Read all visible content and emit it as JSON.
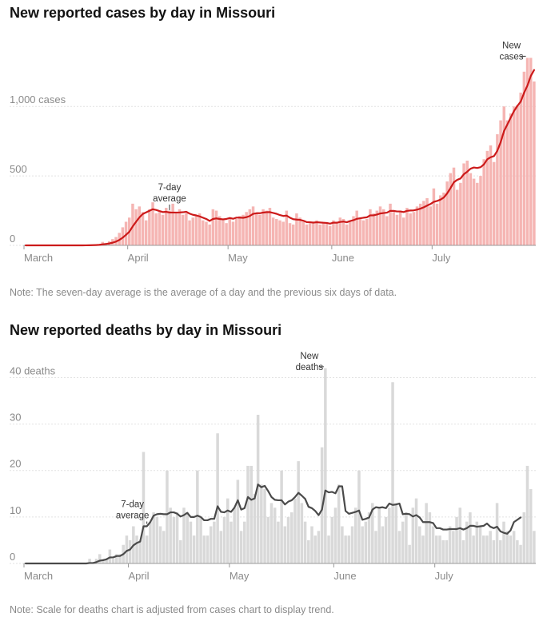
{
  "cases_chart": {
    "title": "New reported cases by day in Missouri",
    "note": "Note: The seven-day average is the average of a day and the previous six days of data.",
    "y_ticks": [
      {
        "value": 0,
        "label": "0"
      },
      {
        "value": 500,
        "label": "500"
      },
      {
        "value": 1000,
        "label": "1,000 cases"
      }
    ],
    "annotations": {
      "new_line1": "New",
      "new_line2": "cases",
      "avg_line1": "7-day",
      "avg_line2": "average"
    }
  },
  "deaths_chart": {
    "title": "New reported deaths by day in Missouri",
    "note": "Note: Scale for deaths chart is adjusted from cases chart to display trend.",
    "y_ticks": [
      {
        "value": 0,
        "label": "0"
      },
      {
        "value": 10,
        "label": "10"
      },
      {
        "value": 20,
        "label": "20"
      },
      {
        "value": 30,
        "label": "30"
      },
      {
        "value": 40,
        "label": "40 deaths"
      }
    ],
    "annotations": {
      "new_line1": "New",
      "new_line2": "deaths",
      "avg_line1": "7-day",
      "avg_line2": "average"
    }
  },
  "colors": {
    "case_bar": "#f5b5b3",
    "case_line": "#cc1a1a",
    "death_bar": "#d9d9d9",
    "death_line": "#4a4a4a",
    "grid": "#e2e2e2",
    "axis_text": "#8a8a8a"
  },
  "chart_data": [
    {
      "type": "bar",
      "title": "New reported cases by day in Missouri",
      "x_axis_labels": [
        "March",
        "April",
        "May",
        "June",
        "July"
      ],
      "x_start": "2020-03-01",
      "ylim": [
        0,
        1450
      ],
      "grid": true,
      "series": [
        {
          "name": "New cases",
          "values": [
            0,
            0,
            0,
            0,
            0,
            0,
            0,
            0,
            0,
            0,
            0,
            0,
            0,
            0,
            0,
            0,
            0,
            1,
            2,
            3,
            4,
            6,
            10,
            25,
            18,
            30,
            45,
            60,
            90,
            130,
            170,
            200,
            300,
            260,
            280,
            240,
            180,
            260,
            310,
            230,
            240,
            220,
            270,
            250,
            300,
            240,
            260,
            220,
            230,
            180,
            200,
            210,
            230,
            180,
            170,
            150,
            260,
            250,
            210,
            180,
            160,
            200,
            170,
            190,
            210,
            220,
            240,
            260,
            280,
            230,
            220,
            260,
            250,
            270,
            200,
            190,
            180,
            170,
            250,
            160,
            150,
            230,
            200,
            170,
            150,
            160,
            160,
            180,
            150,
            170,
            160,
            140,
            180,
            170,
            200,
            190,
            150,
            170,
            210,
            250,
            200,
            180,
            190,
            260,
            230,
            250,
            280,
            260,
            210,
            300,
            240,
            220,
            250,
            200,
            270,
            230,
            240,
            280,
            300,
            320,
            340,
            280,
            410,
            300,
            360,
            380,
            460,
            520,
            560,
            400,
            450,
            590,
            610,
            520,
            480,
            450,
            500,
            620,
            680,
            720,
            600,
            800,
            900,
            1000,
            900,
            950,
            1000,
            1010,
            1100,
            1250,
            1350,
            1350,
            1180
          ]
        },
        {
          "name": "7-day average",
          "values": [
            0,
            0,
            0,
            0,
            0,
            0,
            0,
            0,
            0,
            0,
            0,
            0,
            0,
            0,
            0,
            0,
            0,
            0.1,
            0.4,
            0.9,
            1.4,
            2.3,
            3.7,
            7.3,
            9.7,
            13.7,
            19.4,
            27.1,
            39.0,
            55.4,
            75.7,
            98.1,
            136.4,
            169.6,
            201.4,
            226.0,
            237.1,
            249.0,
            260.0,
            254.9,
            246.9,
            239.6,
            241.6,
            236.3,
            236.3,
            236.3,
            237.1,
            238.6,
            241.7,
            228.6,
            220.0,
            215.7,
            208.6,
            199.1,
            190.0,
            175.7,
            190.0,
            194.3,
            190.0,
            187.1,
            190.0,
            197.1,
            191.4,
            199.6,
            199.9,
            198.6,
            202.9,
            211.4,
            227.1,
            231.4,
            231.4,
            236.0,
            238.6,
            239.3,
            233.1,
            227.3,
            218.0,
            211.6,
            214.2,
            199.4,
            188.5,
            185.6,
            183.6,
            177.6,
            167.8,
            166.5,
            163.9,
            166.5,
            164.8,
            162.8,
            161.4,
            156.3,
            163.6,
            163.1,
            168.8,
            171.3,
            166.4,
            175.1,
            181.5,
            191.1,
            195.4,
            199.1,
            202.1,
            215.9,
            216.1,
            221.9,
            229.6,
            232.8,
            235.6,
            248.6,
            248.2,
            244.1,
            244.1,
            240.0,
            248.5,
            250.9,
            251.9,
            257.2,
            264.4,
            274.3,
            286.0,
            297.7,
            313.0,
            319.8,
            329.2,
            345.1,
            374.0,
            412.6,
            454.2,
            471.4,
            481.5,
            512.5,
            530.2,
            552.2,
            560.5,
            557.1,
            562.6,
            583.4,
            619.6,
            634.5,
            642.6,
            680.9,
            743.4,
            822.8,
            870.3,
            919.9,
            967.2,
            1004.0,
            1035.5,
            1098.2,
            1150.3,
            1219.6,
            1262.5
          ]
        }
      ]
    },
    {
      "type": "bar",
      "title": "New reported deaths by day in Missouri",
      "x_axis_labels": [
        "March",
        "April",
        "May",
        "June",
        "July"
      ],
      "x_start": "2020-03-01",
      "ylim": [
        0,
        43
      ],
      "grid": true,
      "series": [
        {
          "name": "New deaths",
          "values": [
            0,
            0,
            0,
            0,
            0,
            0,
            0,
            0,
            0,
            0,
            0,
            0,
            0,
            0,
            0,
            0,
            0,
            0,
            0,
            1,
            0,
            1,
            2,
            1,
            1,
            3,
            1,
            2,
            2,
            4,
            6,
            5,
            8,
            6,
            5,
            24,
            6,
            9,
            11,
            10,
            8,
            7,
            20,
            12,
            10,
            11,
            5,
            12,
            11,
            9,
            6,
            20,
            10,
            6,
            6,
            8,
            9,
            28,
            7,
            10,
            14,
            9,
            12,
            18,
            7,
            9,
            21,
            21,
            15,
            32,
            17,
            16,
            10,
            13,
            12,
            9,
            20,
            8,
            10,
            11,
            14,
            22,
            13,
            9,
            5,
            8,
            6,
            7,
            25,
            42,
            6,
            10,
            12,
            17,
            8,
            6,
            6,
            8,
            12,
            20,
            8,
            9,
            11,
            13,
            7,
            12,
            8,
            10,
            12,
            39,
            13,
            7,
            9,
            11,
            4,
            12,
            14,
            8,
            6,
            13,
            11,
            8,
            6,
            6,
            5,
            5,
            8,
            7,
            10,
            12,
            5,
            9,
            11,
            6,
            9,
            8,
            6,
            6,
            7,
            5,
            13,
            5,
            9,
            7,
            6,
            7,
            5,
            4,
            11,
            21,
            16,
            7
          ]
        },
        {
          "name": "7-day average",
          "values": [
            0,
            0,
            0,
            0,
            0,
            0,
            0,
            0,
            0,
            0,
            0,
            0,
            0,
            0,
            0,
            0,
            0,
            0,
            0,
            0.1,
            0.1,
            0.3,
            0.6,
            0.7,
            0.9,
            1.3,
            1.3,
            1.6,
            1.6,
            2.0,
            2.7,
            3.0,
            3.9,
            4.4,
            4.7,
            8.0,
            8.0,
            8.9,
            10.3,
            10.6,
            10.7,
            10.6,
            10.6,
            11.0,
            11.0,
            10.7,
            10.1,
            10.4,
            10.9,
            10.0,
            10.0,
            10.3,
            10.0,
            9.3,
            9.3,
            9.6,
            9.6,
            12.3,
            11.1,
            11.0,
            11.4,
            11.1,
            12.0,
            13.6,
            11.6,
            11.9,
            14.3,
            13.7,
            14.0,
            17.0,
            16.4,
            16.7,
            15.6,
            14.3,
            13.7,
            13.6,
            13.6,
            12.7,
            13.3,
            13.6,
            14.3,
            15.2,
            14.6,
            13.9,
            12.2,
            11.9,
            11.3,
            10.4,
            11.6,
            15.7,
            15.3,
            15.4,
            15.1,
            16.6,
            16.6,
            11.3,
            10.7,
            10.9,
            11.1,
            11.4,
            9.4,
            9.6,
            9.9,
            11.6,
            12.1,
            12.0,
            12.1,
            11.9,
            12.9,
            12.6,
            12.7,
            12.9,
            10.6,
            10.7,
            10.6,
            10.1,
            10.4,
            9.9,
            8.9,
            8.9,
            8.9,
            8.7,
            7.6,
            7.6,
            7.3,
            7.3,
            7.4,
            7.4,
            7.4,
            7.6,
            7.3,
            7.6,
            8.1,
            8.1,
            7.9,
            8.0,
            8.1,
            8.6,
            7.9,
            7.6,
            7.9,
            6.9,
            6.6,
            6.4,
            7.1,
            8.9,
            9.4,
            9.9
          ]
        }
      ]
    }
  ]
}
